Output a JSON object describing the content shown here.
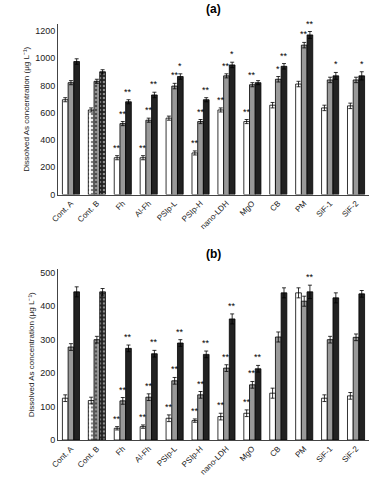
{
  "chart_data": [
    {
      "type": "bar",
      "title": "(a)",
      "ylabel": "Dissolved As concentration (μg L⁻¹)",
      "categories": [
        "Cont. A",
        "Cont. B",
        "Fh",
        "Al-Fh",
        "PSIp-L",
        "PSIp-H",
        "nano-LDH",
        "MgO",
        "CB",
        "PM",
        "SiF-1",
        "SiF-2"
      ],
      "stippled": [
        false,
        true,
        false,
        false,
        false,
        false,
        false,
        false,
        false,
        false,
        false,
        false
      ],
      "series": [
        {
          "color": "#ffffff",
          "values": [
            695,
            620,
            270,
            270,
            560,
            305,
            620,
            535,
            655,
            810,
            635,
            650
          ],
          "errors": [
            15,
            15,
            15,
            15,
            15,
            15,
            15,
            15,
            20,
            20,
            20,
            20
          ],
          "annotations": [
            null,
            null,
            "**",
            "**",
            null,
            "**",
            "**",
            "**",
            null,
            null,
            null,
            null
          ]
        },
        {
          "color": "#999999",
          "values": [
            820,
            830,
            520,
            545,
            795,
            535,
            870,
            805,
            845,
            1095,
            840,
            840
          ],
          "errors": [
            15,
            15,
            15,
            15,
            20,
            15,
            15,
            15,
            20,
            20,
            20,
            20
          ],
          "annotations": [
            null,
            null,
            "**",
            "**",
            "**",
            "**",
            "**",
            "**",
            "*",
            "**",
            null,
            null
          ]
        },
        {
          "color": "#222222",
          "values": [
            975,
            900,
            680,
            730,
            865,
            695,
            950,
            820,
            940,
            1170,
            870,
            870
          ],
          "errors": [
            20,
            15,
            15,
            20,
            20,
            15,
            20,
            15,
            20,
            25,
            25,
            30
          ],
          "annotations": [
            null,
            null,
            "**",
            "**",
            "*",
            "**",
            "*",
            null,
            "**",
            "**",
            "*",
            "*"
          ]
        }
      ],
      "ylim": [
        0,
        1250
      ],
      "yticks": [
        0,
        200,
        400,
        600,
        800,
        1000,
        1200
      ],
      "grid": false
    },
    {
      "type": "bar",
      "title": "(b)",
      "ylabel": "Dissolved As concentration (μg L⁻¹)",
      "categories": [
        "Cont. A",
        "Cont. B",
        "Fh",
        "Al-Fh",
        "PSIp-L",
        "PSIp-H",
        "nano-LDH",
        "MgO",
        "CB",
        "PM",
        "SiF-1",
        "SiF-2"
      ],
      "stippled": [
        false,
        true,
        false,
        false,
        false,
        false,
        false,
        false,
        false,
        false,
        false,
        false
      ],
      "series": [
        {
          "color": "#ffffff",
          "values": [
            125,
            118,
            35,
            40,
            65,
            58,
            70,
            80,
            140,
            440,
            125,
            132
          ],
          "errors": [
            10,
            10,
            5,
            5,
            10,
            5,
            10,
            10,
            15,
            15,
            10,
            10
          ],
          "annotations": [
            null,
            null,
            "**",
            "**",
            "**",
            "**",
            "**",
            "**",
            null,
            null,
            null,
            null
          ]
        },
        {
          "color": "#999999",
          "values": [
            278,
            300,
            117,
            128,
            177,
            135,
            215,
            165,
            308,
            415,
            300,
            307
          ],
          "errors": [
            10,
            10,
            10,
            10,
            10,
            10,
            10,
            10,
            15,
            15,
            10,
            10
          ],
          "annotations": [
            null,
            null,
            "**",
            "**",
            "**",
            "**",
            "**",
            "**",
            null,
            null,
            null,
            null
          ]
        },
        {
          "color": "#222222",
          "values": [
            443,
            443,
            274,
            258,
            290,
            256,
            362,
            213,
            440,
            443,
            425,
            437
          ],
          "errors": [
            15,
            10,
            10,
            10,
            10,
            10,
            15,
            10,
            15,
            20,
            15,
            10
          ],
          "annotations": [
            null,
            null,
            "**",
            "**",
            "**",
            "**",
            "**",
            "**",
            null,
            "**",
            null,
            null
          ]
        }
      ],
      "ylim": [
        0,
        510
      ],
      "yticks": [
        0,
        100,
        200,
        300,
        400,
        500
      ],
      "grid": false
    }
  ]
}
